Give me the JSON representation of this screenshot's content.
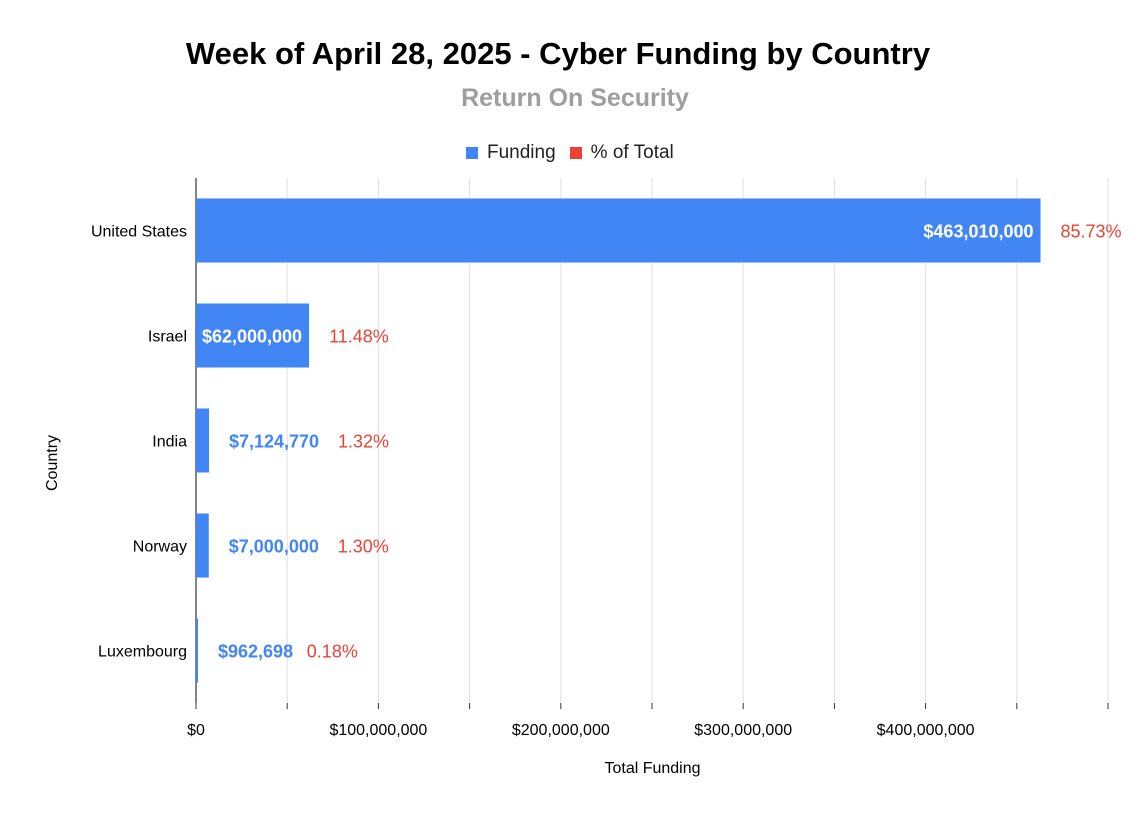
{
  "chart_data": {
    "type": "bar",
    "orientation": "horizontal",
    "title": "Week of April 28, 2025 - Cyber Funding by Country",
    "subtitle": "Return On Security",
    "xlabel": "Total Funding",
    "ylabel": "Country",
    "xlim": [
      0,
      500000000
    ],
    "x_ticks": [
      "$0",
      "$100,000,000",
      "$200,000,000",
      "$300,000,000",
      "$400,000,000"
    ],
    "x_tick_values": [
      0,
      100000000,
      200000000,
      300000000,
      400000000
    ],
    "grid": true,
    "legend_position": "top",
    "legend": [
      "Funding",
      "% of Total"
    ],
    "colors": {
      "funding": "#4285f4",
      "percent": "#ea4335"
    },
    "categories": [
      "United States",
      "Israel",
      "India",
      "Norway",
      "Luxembourg"
    ],
    "series": [
      {
        "name": "Funding",
        "values": [
          463010000,
          62000000,
          7124770,
          7000000,
          962698
        ],
        "labels": [
          "$463,010,000",
          "$62,000,000",
          "$7,124,770",
          "$7,000,000",
          "$962,698"
        ]
      },
      {
        "name": "% of Total",
        "values": [
          85.73,
          11.48,
          1.32,
          1.3,
          0.18
        ],
        "labels": [
          "85.73%",
          "11.48%",
          "1.32%",
          "1.30%",
          "0.18%"
        ]
      }
    ]
  }
}
